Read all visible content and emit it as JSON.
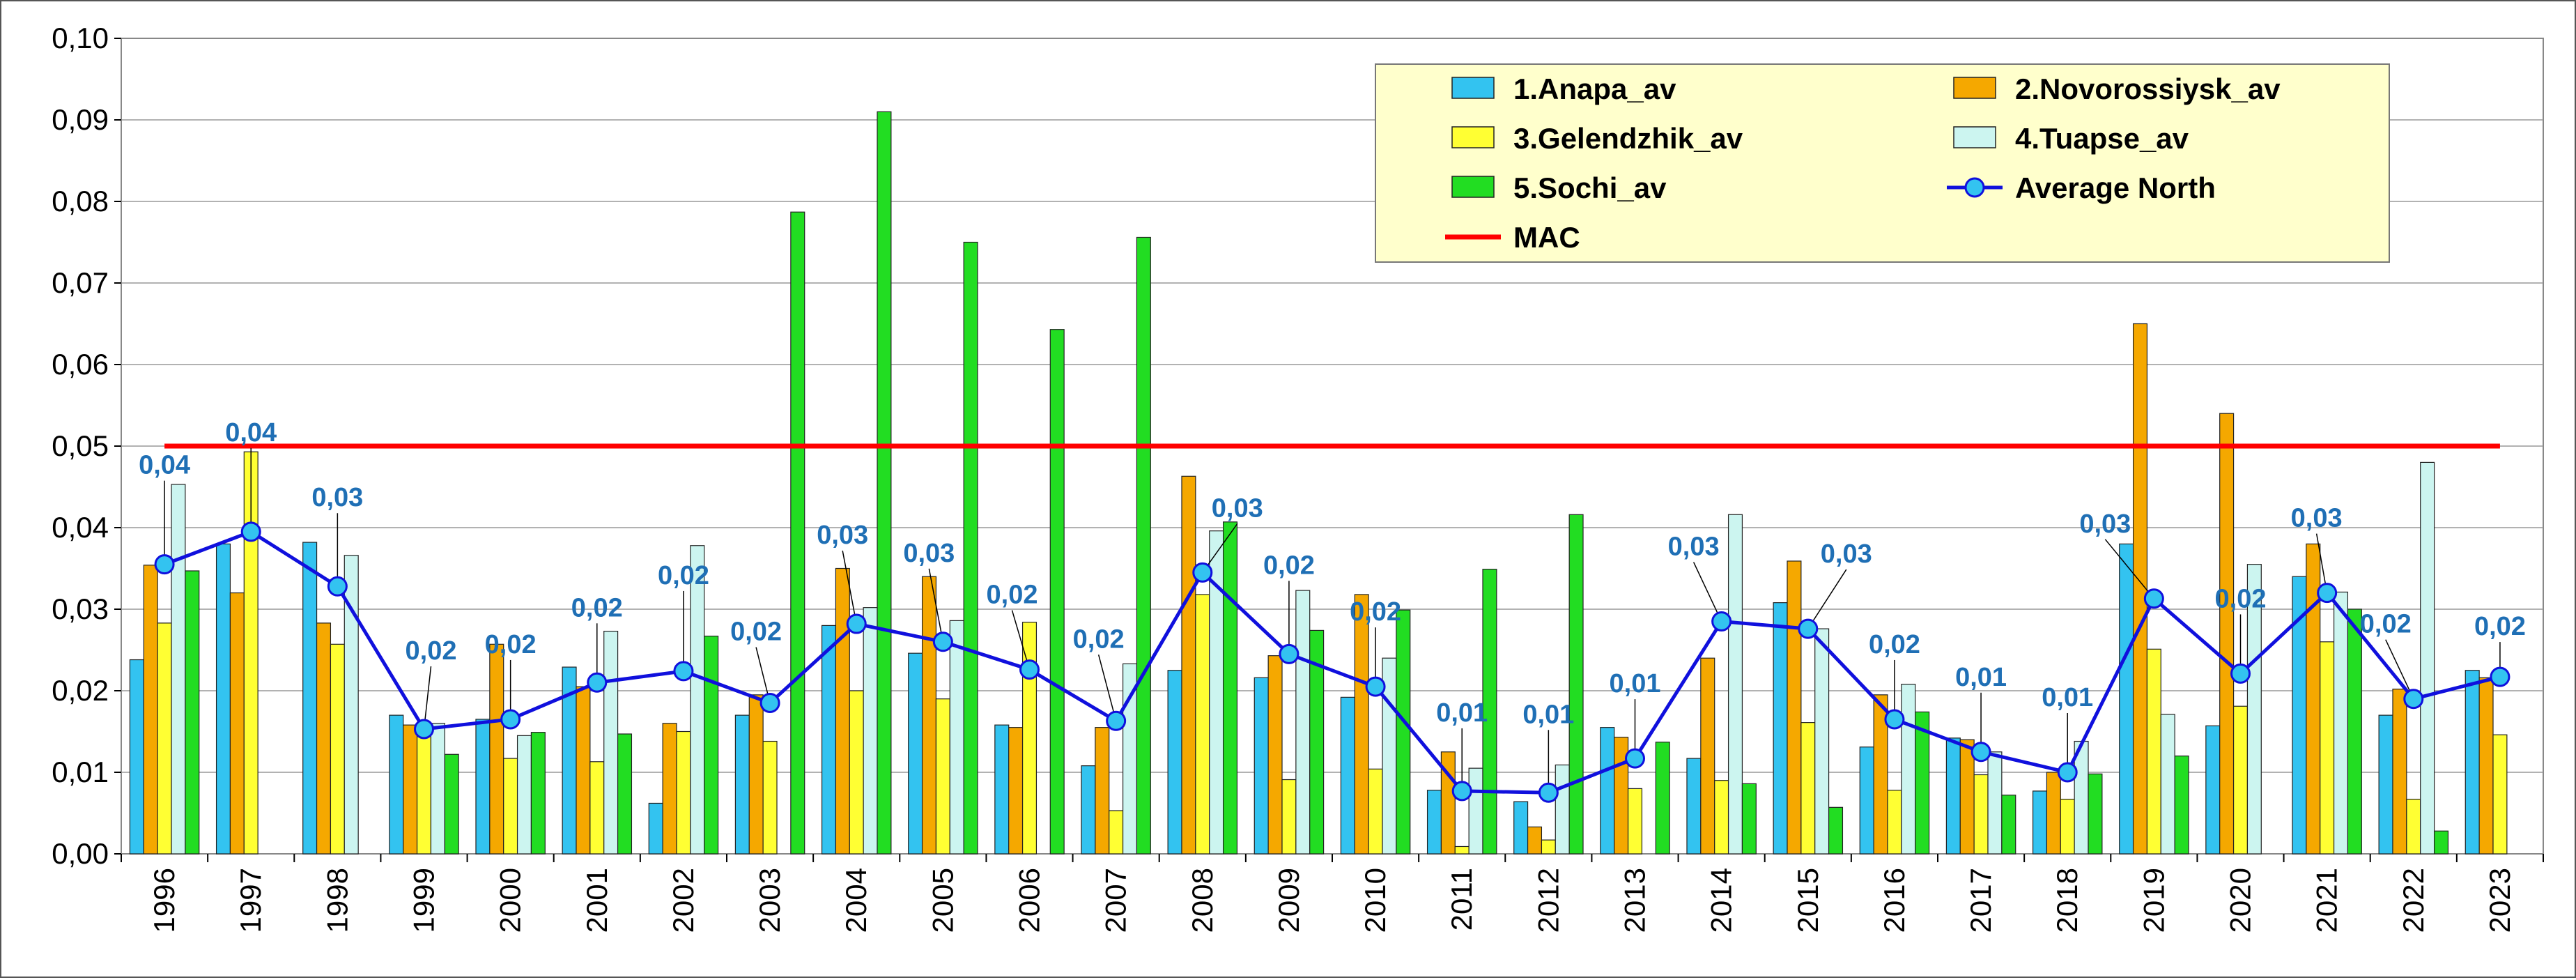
{
  "chart_data": {
    "type": "bar",
    "categories": [
      "1996",
      "1997",
      "1998",
      "1999",
      "2000",
      "2001",
      "2002",
      "2003",
      "2004",
      "2005",
      "2006",
      "2007",
      "2008",
      "2009",
      "2010",
      "2011",
      "2012",
      "2013",
      "2014",
      "2015",
      "2016",
      "2017",
      "2018",
      "2019",
      "2020",
      "2021",
      "2022",
      "2023"
    ],
    "ylim": [
      0,
      0.1
    ],
    "yticks": [
      "0,00",
      "0,01",
      "0,02",
      "0,03",
      "0,04",
      "0,05",
      "0,06",
      "0,07",
      "0,08",
      "0,09",
      "0,10"
    ],
    "grid": true,
    "legend_position": "top-right",
    "series": [
      {
        "name": "1.Anapa_av",
        "color": "#33c3f0",
        "values": [
          0.0238,
          0.038,
          0.0382,
          0.017,
          0.0165,
          0.0229,
          0.0062,
          0.017,
          0.028,
          0.0246,
          0.0158,
          0.0108,
          0.0225,
          0.0216,
          0.0192,
          0.0078,
          0.0064,
          0.0155,
          0.0117,
          0.0308,
          0.0131,
          0.0142,
          0.0077,
          0.038,
          0.0157,
          0.034,
          0.017,
          0.0225
        ]
      },
      {
        "name": "2.Novorossiysk_av",
        "color": "#f5a800",
        "values": [
          0.0354,
          0.032,
          0.0283,
          0.0158,
          0.0257,
          0.0205,
          0.016,
          0.0195,
          0.035,
          0.034,
          0.0155,
          0.0155,
          0.0463,
          0.0243,
          0.0318,
          0.0125,
          0.0033,
          0.0143,
          0.024,
          0.0359,
          0.0195,
          0.014,
          0.01,
          0.065,
          0.054,
          0.038,
          0.0202,
          0.0216
        ]
      },
      {
        "name": "3.Gelendzhik_av",
        "color": "#ffff33",
        "values": [
          0.0283,
          0.0493,
          0.0257,
          0.0157,
          0.0117,
          0.0113,
          0.015,
          0.0138,
          0.02,
          0.019,
          0.0284,
          0.0053,
          0.0318,
          0.0091,
          0.0104,
          0.0009,
          0.0017,
          0.008,
          0.009,
          0.0161,
          0.0078,
          0.0097,
          0.0067,
          0.0251,
          0.0181,
          0.026,
          0.0067,
          0.0146
        ]
      },
      {
        "name": "4.Tuapse_av",
        "color": "#ccf5f0",
        "values": [
          0.0453,
          null,
          0.0366,
          0.016,
          0.0145,
          0.0273,
          0.0378,
          null,
          0.0302,
          0.0286,
          null,
          0.0233,
          0.0396,
          0.0323,
          0.024,
          0.0105,
          0.0109,
          null,
          0.0416,
          0.0276,
          0.0208,
          0.0125,
          0.0138,
          0.0171,
          0.0355,
          0.0321,
          0.048,
          null
        ]
      },
      {
        "name": "5.Sochi_av",
        "color": "#22dd22",
        "values": [
          0.0347,
          null,
          null,
          0.0122,
          0.0149,
          0.0147,
          0.0267,
          0.0787,
          0.091,
          0.075,
          0.0643,
          0.0756,
          0.0407,
          0.0274,
          0.0299,
          0.0349,
          0.0416,
          0.0137,
          0.0086,
          0.0057,
          0.0174,
          0.0072,
          0.0098,
          0.012,
          null,
          0.03,
          0.0028,
          null
        ]
      }
    ],
    "line_series": {
      "name": "Average North",
      "color": "#1010dd",
      "marker_color": "#33c3f0",
      "values": [
        0.0355,
        0.0395,
        0.0328,
        0.0153,
        0.0165,
        0.021,
        0.0224,
        0.0185,
        0.0282,
        0.026,
        0.0226,
        0.0163,
        0.0345,
        0.0245,
        0.0205,
        0.0077,
        0.0075,
        0.0117,
        0.0285,
        0.0276,
        0.0165,
        0.0125,
        0.01,
        0.0313,
        0.0221,
        0.032,
        0.019,
        0.0217
      ],
      "labels": [
        "0,04",
        "0,04",
        "0,03",
        "0,02",
        "0,02",
        "0,02",
        "0,02",
        "0,02",
        "0,03",
        "0,03",
        "0,02",
        "0,02",
        "0,03",
        "0,02",
        "0,02",
        "0,01",
        "0,01",
        "0,01",
        "0,03",
        "0,03",
        "0,02",
        "0,01",
        "0,01",
        "0,03",
        "0,02",
        "0,03",
        "0,02",
        "0,02"
      ]
    },
    "mac": {
      "name": "MAC",
      "value": 0.05,
      "color": "#ff0000"
    },
    "legend_bg": "#ffffcc"
  }
}
